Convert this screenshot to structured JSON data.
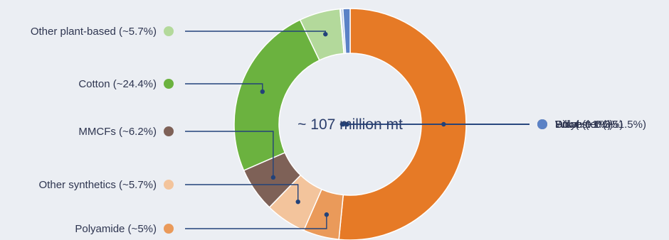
{
  "chart_data": {
    "type": "pie",
    "center_label": "~ 107 million mt",
    "slices": [
      {
        "label": "Polyester (~51.5%)",
        "value": 51.5,
        "color": "#e67a26",
        "side": "right"
      },
      {
        "label": "Polyamide (~5%)",
        "value": 5.0,
        "color": "#ea9a5a",
        "side": "left"
      },
      {
        "label": "Other synthetics (~5.7%)",
        "value": 5.7,
        "color": "#f3c49c",
        "side": "left"
      },
      {
        "label": "MMCFs (~6.2%)",
        "value": 6.2,
        "color": "#7e6157",
        "side": "left"
      },
      {
        "label": "Cotton (~24.4%)",
        "value": 24.4,
        "color": "#6bb23f",
        "side": "left"
      },
      {
        "label": "Other plant-based (~5.7%)",
        "value": 5.7,
        "color": "#b3d99b",
        "side": "left"
      },
      {
        "label": "Silk (~0.1%)",
        "value": 0.1,
        "color": "#22427a",
        "side": "right"
      },
      {
        "label": "Down (~0.3%)",
        "value": 0.3,
        "color": "#a9bde0",
        "side": "right"
      },
      {
        "label": "Wool (~1%)",
        "value": 1.0,
        "color": "#5b82c6",
        "side": "right"
      }
    ]
  }
}
